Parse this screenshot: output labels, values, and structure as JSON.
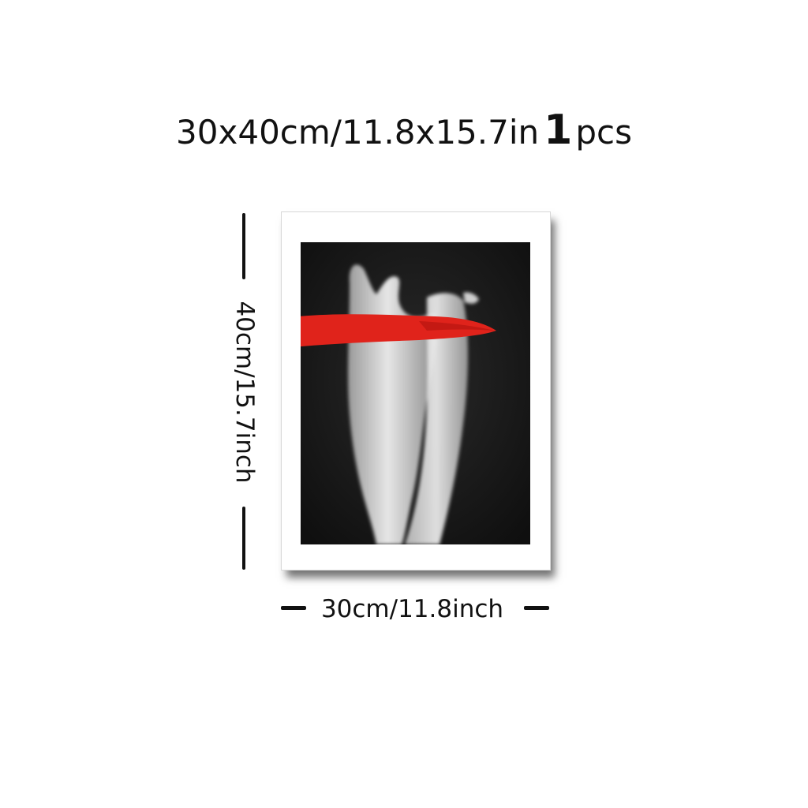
{
  "title": {
    "size_text": "30x40cm/11.8x15.7in",
    "count": "1",
    "unit": "pcs"
  },
  "dimensions": {
    "height_label": "40cm/15.7inch",
    "width_label": "30cm/11.8inch"
  },
  "artwork": {
    "background_color": "#151515",
    "stroke_color": "#e0231b"
  }
}
